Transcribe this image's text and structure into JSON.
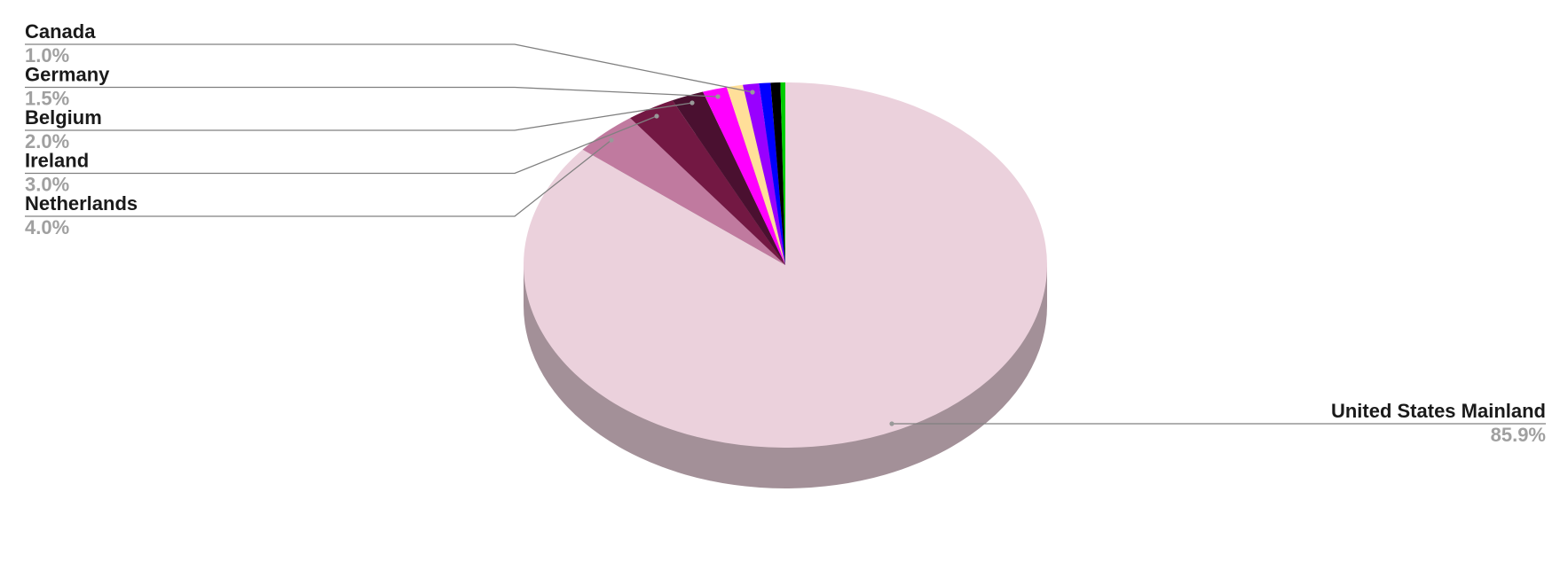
{
  "chart_data": {
    "type": "pie",
    "style": "3d",
    "start": "top, clockwise",
    "slices": [
      {
        "label": "United States Mainland",
        "value": 85.9,
        "display": "85.9%",
        "color": "#ebd1dc"
      },
      {
        "label": "Netherlands",
        "value": 4.0,
        "display": "4.0%",
        "color": "#c07a9f"
      },
      {
        "label": "Ireland",
        "value": 3.0,
        "display": "3.0%",
        "color": "#731843"
      },
      {
        "label": "Belgium",
        "value": 2.0,
        "display": "2.0%",
        "color": "#4a1030"
      },
      {
        "label": "Germany",
        "value": 1.5,
        "display": "1.5%",
        "color": "#ff00ff"
      },
      {
        "label": "",
        "value": 1.0,
        "display": "",
        "color": "#ffdf99"
      },
      {
        "label": "Canada",
        "value": 1.0,
        "display": "1.0%",
        "color": "#9900ff"
      },
      {
        "label": "",
        "value": 0.7,
        "display": "",
        "color": "#0000ff"
      },
      {
        "label": "",
        "value": 0.6,
        "display": "",
        "color": "#000000"
      },
      {
        "label": "",
        "value": 0.3,
        "display": "",
        "color": "#00cc00"
      }
    ],
    "side_color": "#a39098",
    "leader_color": "#808080",
    "legend": "leader-line labels"
  }
}
